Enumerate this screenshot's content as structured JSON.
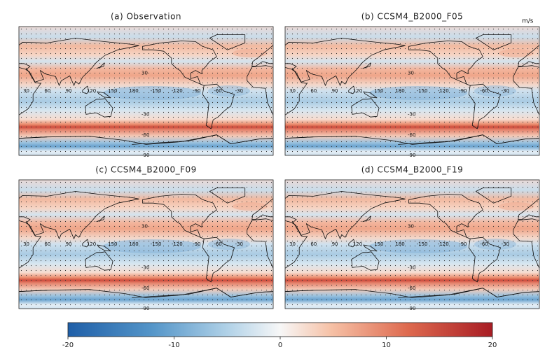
{
  "panels": [
    {
      "title": "(a) Observation"
    },
    {
      "title": "(b) CCSM4_B2000_F05"
    },
    {
      "title": "(c) CCSM4_B2000_F09"
    },
    {
      "title": "(d) CCSM4_B2000_F19"
    }
  ],
  "unit": "m/s",
  "lon_labels": [
    "30",
    "60",
    "90",
    "120",
    "150",
    "180",
    "-150",
    "-120",
    "-90",
    "-60",
    "-30"
  ],
  "lat_labels": [
    "30",
    "-30",
    "-60",
    "-90"
  ],
  "colorbar": {
    "lim": [
      -20,
      20
    ],
    "ticks": [
      -20,
      -10,
      0,
      10,
      20
    ]
  }
}
